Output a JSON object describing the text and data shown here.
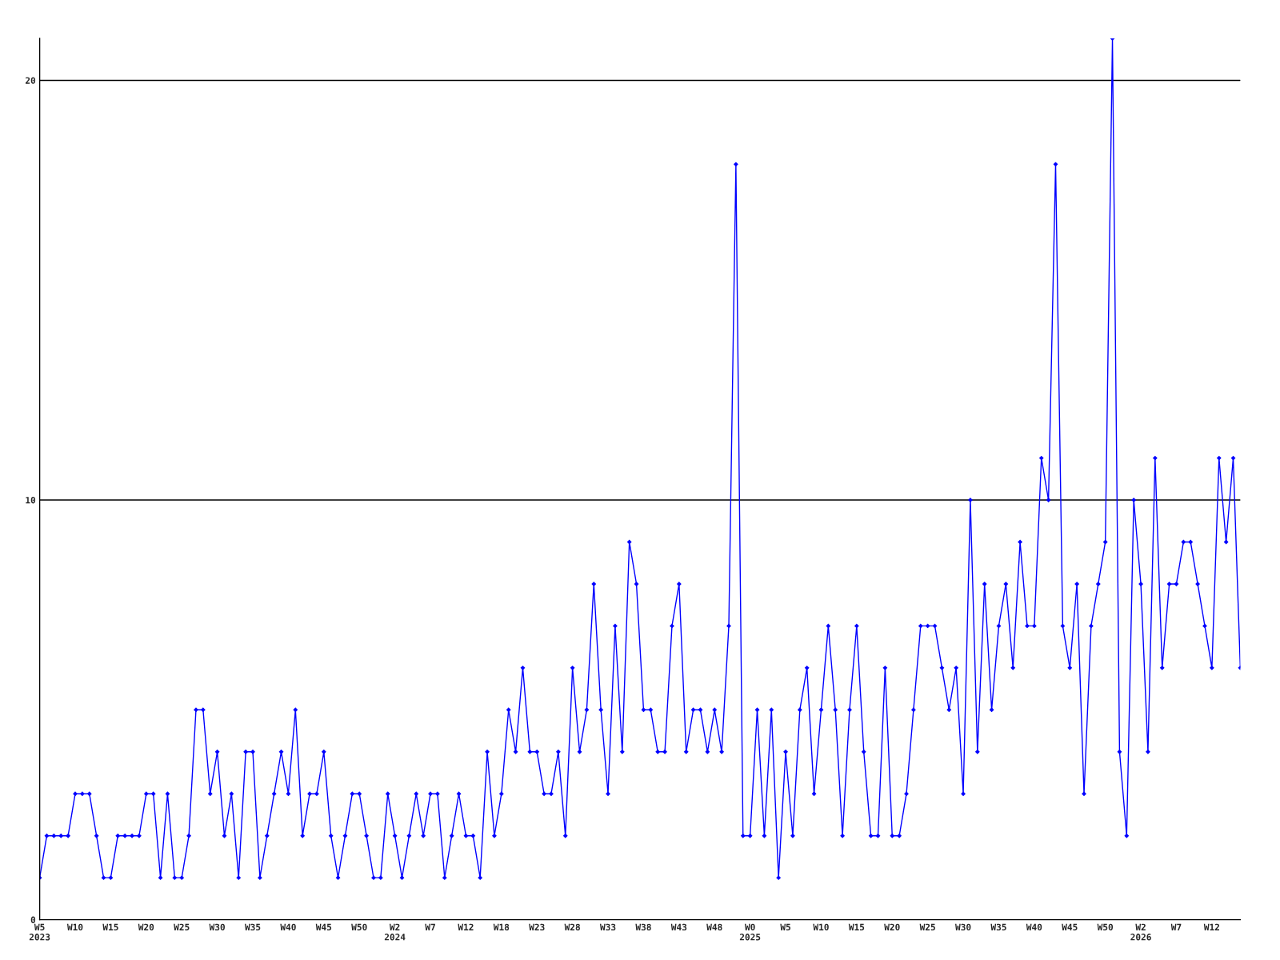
{
  "chart_data": {
    "type": "line",
    "categories": [
      "W5\n2023",
      null,
      null,
      null,
      null,
      "W10",
      null,
      null,
      null,
      null,
      "W15",
      null,
      null,
      null,
      null,
      "W20",
      null,
      null,
      null,
      null,
      "W25",
      null,
      null,
      null,
      null,
      "W30",
      null,
      null,
      null,
      null,
      "W35",
      null,
      null,
      null,
      null,
      "W40",
      null,
      null,
      null,
      null,
      "W45",
      null,
      null,
      null,
      null,
      "W50",
      null,
      null,
      null,
      null,
      "W2\n2024",
      null,
      null,
      null,
      null,
      "W7",
      null,
      null,
      null,
      null,
      "W12",
      null,
      null,
      null,
      null,
      "W18",
      null,
      null,
      null,
      null,
      "W23",
      null,
      null,
      null,
      null,
      "W28",
      null,
      null,
      null,
      null,
      "W33",
      null,
      null,
      null,
      null,
      "W38",
      null,
      null,
      null,
      null,
      "W43",
      null,
      null,
      null,
      null,
      "W48",
      null,
      null,
      null,
      null,
      "W0\n2025",
      null,
      null,
      null,
      null,
      "W5",
      null,
      null,
      null,
      null,
      "W10",
      null,
      null,
      null,
      null,
      "W15",
      null,
      null,
      null,
      null,
      "W20",
      null,
      null,
      null,
      null,
      "W25",
      null,
      null,
      null,
      null,
      "W30",
      null,
      null,
      null,
      null,
      "W35",
      null,
      null,
      null,
      null,
      "W40",
      null,
      null,
      null,
      null,
      "W45",
      null,
      null,
      null,
      null,
      "W50",
      null,
      null,
      null,
      null,
      "W2\n2026",
      null,
      null,
      null,
      null,
      "W7",
      null,
      null,
      null,
      null,
      "W12",
      null,
      null,
      null,
      null
    ],
    "series": [
      {
        "color": "#0000ff",
        "values": [
          1,
          2,
          2,
          2,
          2,
          3,
          3,
          3,
          2,
          1,
          1,
          2,
          2,
          2,
          2,
          3,
          3,
          1,
          3,
          1,
          1,
          2,
          5,
          5,
          3,
          4,
          2,
          3,
          1,
          4,
          4,
          1,
          2,
          3,
          4,
          3,
          5,
          2,
          3,
          3,
          4,
          2,
          1,
          2,
          3,
          3,
          2,
          1,
          1,
          3,
          2,
          1,
          2,
          3,
          2,
          3,
          3,
          1,
          2,
          3,
          2,
          2,
          1,
          4,
          2,
          3,
          5,
          4,
          6,
          4,
          4,
          3,
          3,
          4,
          2,
          6,
          4,
          5,
          8,
          5,
          3,
          7,
          4,
          9,
          8,
          5,
          5,
          4,
          4,
          7,
          8,
          4,
          5,
          5,
          4,
          5,
          4,
          7,
          18,
          2,
          2,
          5,
          2,
          5,
          1,
          4,
          2,
          5,
          6,
          3,
          5,
          7,
          5,
          2,
          5,
          7,
          4,
          2,
          2,
          6,
          2,
          2,
          3,
          5,
          7,
          7,
          7,
          6,
          5,
          6,
          3,
          10,
          4,
          8,
          5,
          7,
          8,
          6,
          9,
          7,
          7,
          11,
          10,
          18,
          7,
          6,
          8,
          3,
          7,
          8,
          9,
          21,
          4,
          2,
          10,
          8,
          4,
          11,
          6,
          8,
          8,
          9,
          9,
          8,
          7,
          6,
          11,
          9,
          11,
          6
        ]
      }
    ],
    "ylim": [
      0,
      21
    ],
    "yticks": [
      0,
      10,
      20
    ],
    "grid": "y",
    "marker": "diamond",
    "line_style": "solid"
  }
}
